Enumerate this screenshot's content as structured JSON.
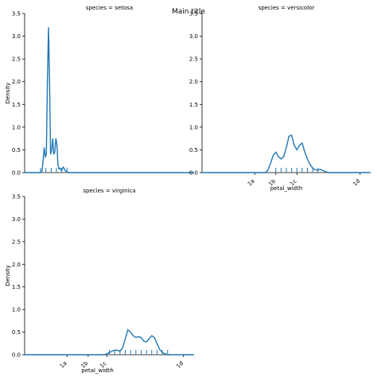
{
  "suptitle": "Main title",
  "chart_data": {
    "type": "line",
    "grid": false,
    "sharey": true,
    "series_color": "#1f77b4",
    "ylabel": "Density",
    "xlabel": "petal_width",
    "ylim": [
      0,
      3.5
    ],
    "y_ticks": [
      0.0,
      0.5,
      1.0,
      1.5,
      2.0,
      2.5,
      3.0,
      3.5
    ],
    "y_tick_labels": [
      "0.0",
      "0.5",
      "1.0",
      "1.5",
      "2.0",
      "2.5",
      "3.0",
      "3.5"
    ],
    "x_tick_labels": [
      "1a",
      "1b",
      "1c",
      "1d"
    ],
    "xlim": [
      -0.2,
      3.0
    ],
    "panels": [
      {
        "title": "species = setosa",
        "show_xlabel": false,
        "show_ylabel": true,
        "show_xticks": false,
        "x_ticks": [],
        "curve": {
          "x": [
            -0.2,
            0.1,
            0.13,
            0.15,
            0.17,
            0.19,
            0.21,
            0.23,
            0.25,
            0.27,
            0.29,
            0.31,
            0.33,
            0.35,
            0.37,
            0.39,
            0.41,
            0.43,
            0.45,
            0.47,
            0.49,
            0.51,
            0.53,
            0.55,
            0.57,
            0.59,
            0.61,
            0.63,
            0.65,
            0.7,
            0.75,
            3.0
          ],
          "y": [
            0,
            0,
            0.05,
            0.3,
            0.55,
            0.35,
            0.4,
            2.0,
            3.2,
            2.0,
            0.4,
            0.5,
            0.75,
            0.4,
            0.45,
            0.75,
            0.6,
            0.15,
            0.08,
            0.1,
            0.05,
            0.08,
            0.12,
            0.08,
            0.04,
            0.02,
            0.01,
            0.0,
            0.0,
            0.0,
            0.0,
            0.0
          ]
        },
        "rug": [
          0.1,
          0.2,
          0.3,
          0.4,
          0.5,
          0.6
        ]
      },
      {
        "title": "species = versicolor",
        "show_xlabel": true,
        "show_ylabel": false,
        "show_xticks": true,
        "x_ticks": [
          0.8,
          1.2,
          1.6,
          2.8
        ],
        "curve": {
          "x": [
            -0.2,
            1.0,
            1.05,
            1.1,
            1.15,
            1.2,
            1.25,
            1.3,
            1.35,
            1.4,
            1.45,
            1.5,
            1.55,
            1.6,
            1.65,
            1.7,
            1.75,
            1.8,
            1.85,
            1.9,
            1.95,
            2.0,
            2.05,
            2.1,
            2.15,
            2.2,
            2.25,
            3.0
          ],
          "y": [
            0,
            0.0,
            0.05,
            0.2,
            0.38,
            0.45,
            0.35,
            0.3,
            0.35,
            0.55,
            0.8,
            0.82,
            0.6,
            0.5,
            0.6,
            0.65,
            0.45,
            0.3,
            0.18,
            0.1,
            0.06,
            0.06,
            0.07,
            0.04,
            0.02,
            0.0,
            0.0,
            0.0
          ]
        },
        "rug": [
          1.2,
          1.3,
          1.4,
          1.5,
          1.6,
          1.7,
          1.8,
          1.9,
          2.0
        ]
      },
      {
        "title": "species = virginica",
        "show_xlabel": true,
        "show_ylabel": true,
        "show_xticks": true,
        "x_ticks": [
          0.6,
          1.0,
          1.35,
          2.8
        ],
        "curve": {
          "x": [
            -0.2,
            1.3,
            1.35,
            1.4,
            1.45,
            1.5,
            1.55,
            1.6,
            1.65,
            1.7,
            1.75,
            1.8,
            1.85,
            1.9,
            1.95,
            2.0,
            2.05,
            2.1,
            2.15,
            2.2,
            2.25,
            2.3,
            2.35,
            2.4,
            2.45,
            2.5,
            2.55,
            2.6,
            2.65,
            2.7,
            3.0
          ],
          "y": [
            0,
            0.0,
            0.02,
            0.05,
            0.08,
            0.1,
            0.1,
            0.08,
            0.15,
            0.35,
            0.55,
            0.5,
            0.42,
            0.38,
            0.4,
            0.38,
            0.3,
            0.28,
            0.35,
            0.42,
            0.38,
            0.25,
            0.12,
            0.05,
            0.02,
            0.0,
            0.0,
            0.0,
            0.0,
            0.0,
            0.0
          ]
        },
        "rug": [
          1.4,
          1.5,
          1.6,
          1.7,
          1.8,
          1.9,
          2.0,
          2.1,
          2.2,
          2.3,
          2.4,
          2.5
        ]
      }
    ]
  }
}
